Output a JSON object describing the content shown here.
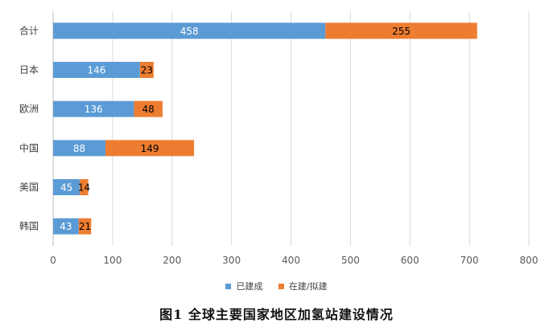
{
  "chart_data": {
    "type": "bar",
    "orientation": "horizontal",
    "stacked": true,
    "categories": [
      "合计",
      "日本",
      "欧洲",
      "中国",
      "美国",
      "韩国"
    ],
    "series": [
      {
        "name": "已建成",
        "color": "#5B9BD5",
        "values": [
          458,
          146,
          136,
          88,
          45,
          43
        ]
      },
      {
        "name": "在建/拟建",
        "color": "#ED7D31",
        "values": [
          255,
          23,
          48,
          149,
          14,
          21
        ]
      }
    ],
    "xlim": [
      0,
      800
    ],
    "xticks": [
      "0",
      "100",
      "200",
      "300",
      "400",
      "500",
      "600",
      "700",
      "800"
    ],
    "grid": true,
    "legend_position": "bottom",
    "caption": "图1 全球主要国家地区加氢站建设情况"
  }
}
